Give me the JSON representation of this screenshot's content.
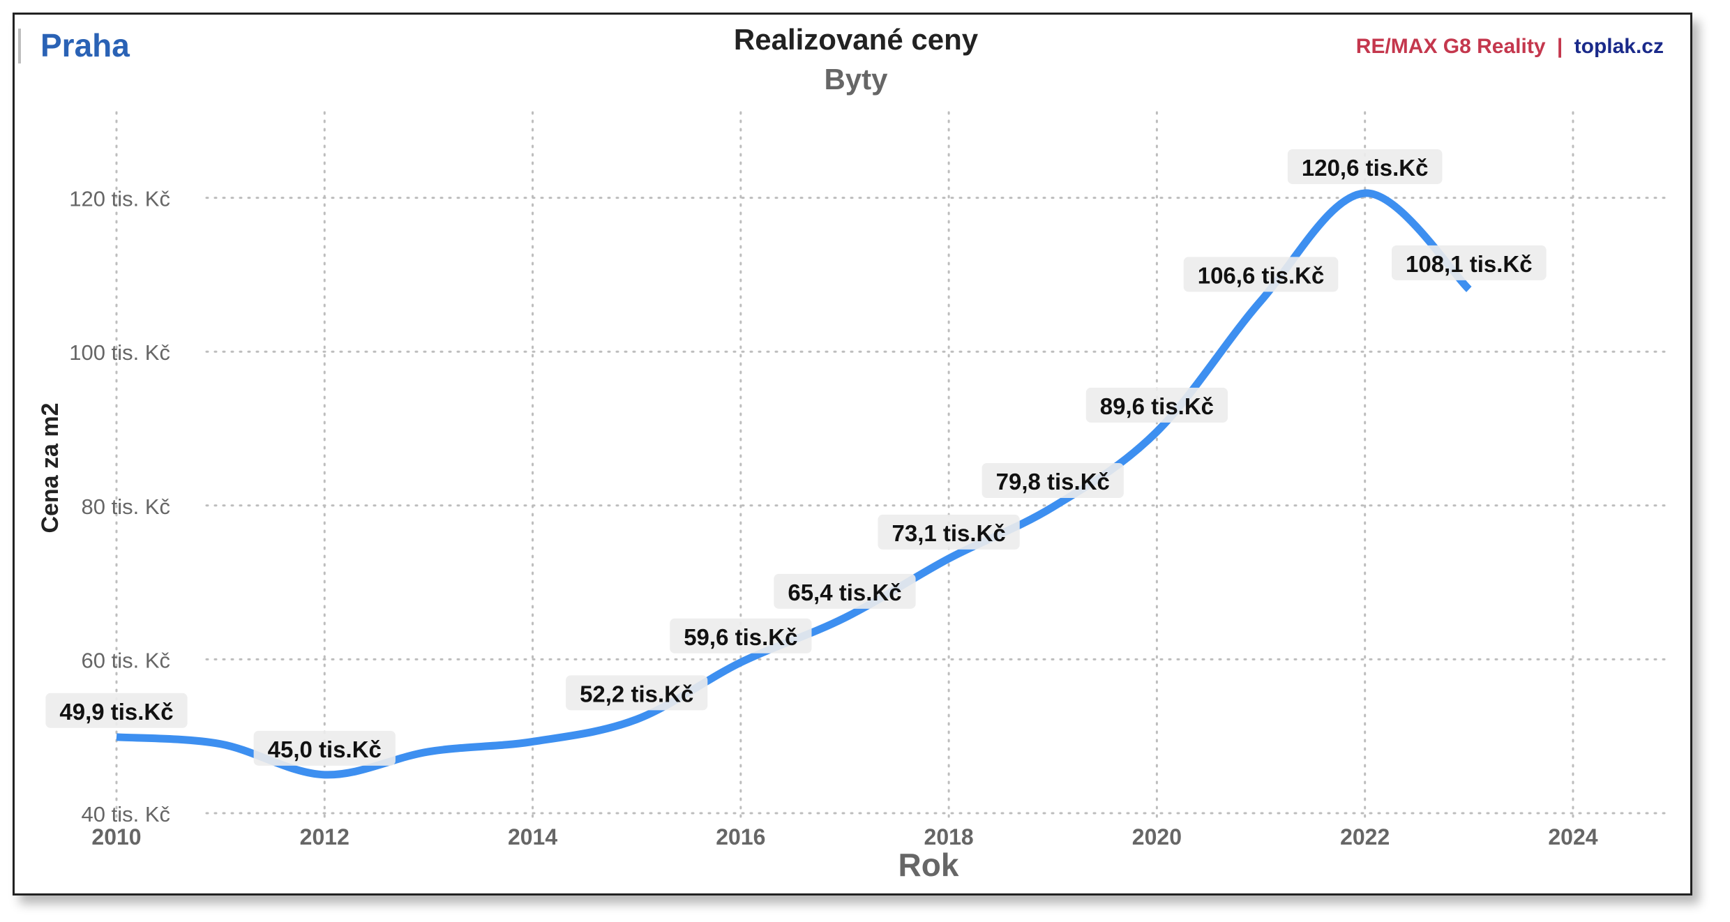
{
  "header": {
    "city": "Praha",
    "brand_remax": "RE/MAX G8 Reality",
    "brand_sep": "|",
    "brand_site": "toplak.cz"
  },
  "colors": {
    "line": "#3d8ff0",
    "city": "#2a62b5",
    "brand_remax": "#c4374d",
    "brand_site": "#1a2a8a",
    "label_bg": "#ececec"
  },
  "chart_data": {
    "type": "line",
    "title": "Realizované ceny",
    "subtitle": "Byty",
    "xlabel": "Rok",
    "ylabel": "Cena za m2",
    "xlim": [
      2010,
      2024
    ],
    "ylim": [
      40,
      130
    ],
    "x_ticks": [
      "2010",
      "2012",
      "2014",
      "2016",
      "2018",
      "2020",
      "2022",
      "2024"
    ],
    "y_ticks": [
      "40 tis. Kč",
      "60 tis. Kč",
      "80 tis. Kč",
      "100 tis. Kč",
      "120 tis. Kč"
    ],
    "grid": true,
    "series": [
      {
        "x": [
          2010,
          2011,
          2012,
          2013,
          2014,
          2015,
          2016,
          2017,
          2018,
          2019,
          2020,
          2021,
          2022,
          2023
        ],
        "y": [
          49.9,
          49.0,
          45.0,
          48.0,
          49.3,
          52.2,
          59.6,
          65.4,
          73.1,
          79.8,
          89.6,
          106.6,
          120.6,
          108.1
        ]
      }
    ],
    "data_labels": [
      {
        "x": 2010,
        "y": 49.9,
        "text": "49,9 tis.Kč"
      },
      {
        "x": 2012,
        "y": 45.0,
        "text": "45,0 tis.Kč"
      },
      {
        "x": 2015,
        "y": 52.2,
        "text": "52,2 tis.Kč"
      },
      {
        "x": 2016,
        "y": 59.6,
        "text": "59,6 tis.Kč"
      },
      {
        "x": 2017,
        "y": 65.4,
        "text": "65,4 tis.Kč"
      },
      {
        "x": 2018,
        "y": 73.1,
        "text": "73,1 tis.Kč"
      },
      {
        "x": 2019,
        "y": 79.8,
        "text": "79,8 tis.Kč"
      },
      {
        "x": 2020,
        "y": 89.6,
        "text": "89,6 tis.Kč"
      },
      {
        "x": 2021,
        "y": 106.6,
        "text": "106,6 tis.Kč"
      },
      {
        "x": 2022,
        "y": 120.6,
        "text": "120,6 tis.Kč"
      },
      {
        "x": 2023,
        "y": 108.1,
        "text": "108,1 tis.Kč"
      }
    ]
  }
}
